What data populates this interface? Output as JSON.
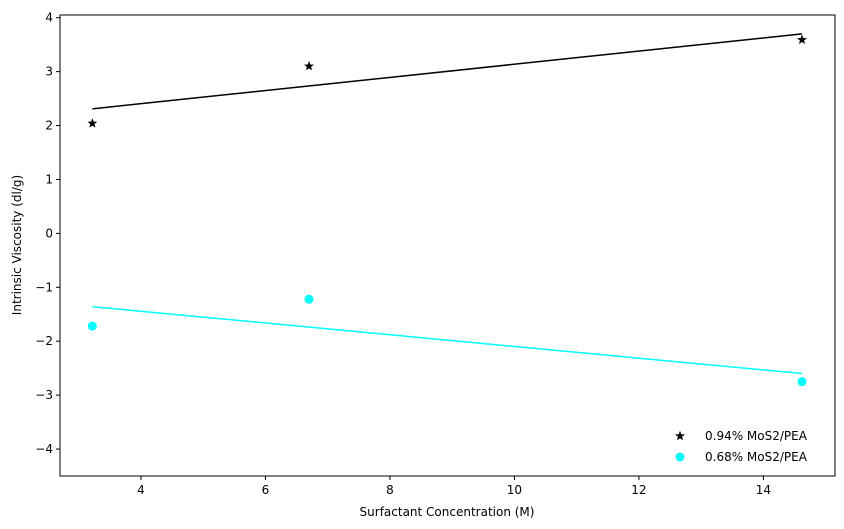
{
  "chart_data": {
    "type": "scatter",
    "title": "",
    "xlabel": "Surfactant Concentration (M)",
    "ylabel": "Intrinsic Viscosity (dl/g)",
    "xlim": [
      2.7,
      15.15
    ],
    "ylim": [
      -4.5,
      4.05
    ],
    "xticks": [
      4,
      6,
      8,
      10,
      12,
      14
    ],
    "yticks": [
      -4,
      -3,
      -2,
      -1,
      0,
      1,
      2,
      3,
      4
    ],
    "xtick_labels": [
      "4",
      "6",
      "8",
      "10",
      "12",
      "14"
    ],
    "ytick_labels": [
      "−4",
      "−3",
      "−2",
      "−1",
      "0",
      "1",
      "2",
      "3",
      "4"
    ],
    "grid": false,
    "legend_position": "lower-right",
    "series": [
      {
        "name": "0.94% MoS2/PEA",
        "marker": "star",
        "color": "#000000",
        "x": [
          3.22,
          6.7,
          14.62
        ],
        "y": [
          2.04,
          3.1,
          3.59
        ],
        "fit": {
          "x": [
            3.22,
            14.62
          ],
          "y": [
            2.31,
            3.7
          ]
        }
      },
      {
        "name": "0.68% MoS2/PEA",
        "marker": "circle",
        "color": "#00ffff",
        "x": [
          3.22,
          6.7,
          14.62
        ],
        "y": [
          -1.72,
          -1.22,
          -2.75
        ],
        "fit": {
          "x": [
            3.22,
            14.62
          ],
          "y": [
            -1.36,
            -2.6
          ]
        }
      }
    ]
  }
}
